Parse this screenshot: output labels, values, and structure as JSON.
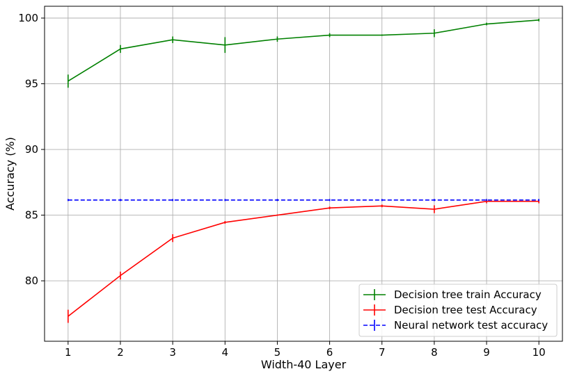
{
  "chart_data": {
    "type": "line",
    "title": "",
    "xlabel": "Width-40 Layer",
    "ylabel": "Accuracy (%)",
    "x": [
      1,
      2,
      3,
      4,
      5,
      6,
      7,
      8,
      9,
      10
    ],
    "xticks": [
      "1",
      "2",
      "3",
      "4",
      "5",
      "6",
      "7",
      "8",
      "9",
      "10"
    ],
    "xlim": [
      0.55,
      10.45
    ],
    "ylim": [
      75.4,
      100.9
    ],
    "yticks": [
      "80",
      "85",
      "90",
      "95",
      "100"
    ],
    "grid": true,
    "legend_position": "lower-right",
    "series": [
      {
        "name": "Decision tree train Accuracy",
        "color": "#008000",
        "linestyle": "solid",
        "values": [
          95.2,
          97.65,
          98.35,
          97.95,
          98.4,
          98.7,
          98.7,
          98.85,
          99.55,
          99.85
        ],
        "errors": [
          0.5,
          0.3,
          0.25,
          0.6,
          0.2,
          0.15,
          0.05,
          0.3,
          0.1,
          0.1
        ]
      },
      {
        "name": "Decision tree test Accuracy",
        "color": "#ff0000",
        "linestyle": "solid",
        "values": [
          77.3,
          80.4,
          83.25,
          84.45,
          85.0,
          85.55,
          85.7,
          85.45,
          86.05,
          86.05
        ],
        "errors": [
          0.5,
          0.3,
          0.3,
          0.1,
          0.05,
          0.1,
          0.1,
          0.3,
          0.15,
          0.15
        ]
      },
      {
        "name": "Neural network test accuracy",
        "color": "#0000ff",
        "linestyle": "dashed",
        "values": [
          86.15,
          86.15,
          86.15,
          86.15,
          86.15,
          86.15,
          86.15,
          86.15,
          86.15,
          86.15
        ],
        "errors": [
          0.08,
          0.08,
          0.08,
          0.08,
          0.08,
          0.08,
          0.08,
          0.08,
          0.08,
          0.08
        ]
      }
    ]
  }
}
